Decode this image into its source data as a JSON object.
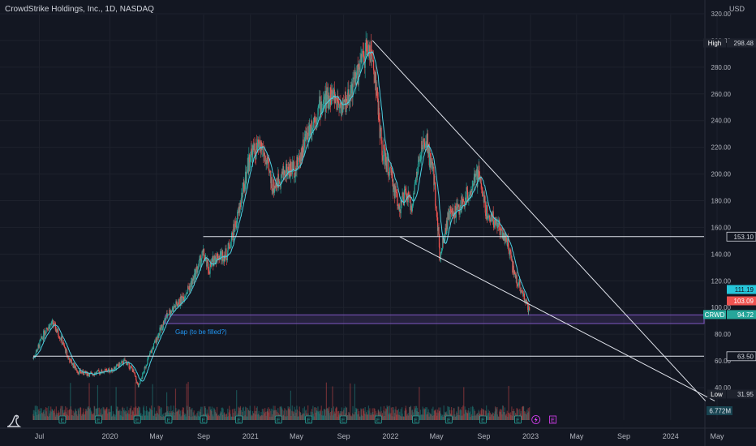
{
  "header": {
    "title": "CrowdStrike Holdings, Inc., 1D, NASDAQ",
    "currency": "USD"
  },
  "colors": {
    "background": "#131722",
    "grid": "#1e222d",
    "up": "#26a69a",
    "down": "#ef5350",
    "ma": "#4dd0e1",
    "line": "#e0e3eb",
    "gap": "#7e57c2",
    "axis_text": "#b2b5be"
  },
  "icons": {
    "logo": "dino-icon",
    "earnings": "earnings-e-icon",
    "dividend": "lightning-icon"
  },
  "chart_data": {
    "type": "candlestick",
    "title": "CrowdStrike Holdings, Inc., 1D, NASDAQ",
    "y_unit": "USD",
    "ylim": [
      30,
      320
    ],
    "grid": true,
    "x_ticks": [
      "Jul",
      "2020",
      "May",
      "Sep",
      "2021",
      "May",
      "Sep",
      "2022",
      "May",
      "Sep",
      "2023",
      "May",
      "Sep",
      "2024",
      "May"
    ],
    "y_ticks": [
      40,
      60,
      80,
      100,
      120,
      140,
      160,
      180,
      200,
      220,
      240,
      260,
      280,
      300,
      320
    ],
    "price_labels": [
      {
        "name": "High",
        "value": 298.48,
        "text": "298.48"
      },
      {
        "name": "",
        "value": 153.1,
        "text": "153.10"
      },
      {
        "name": "",
        "value": 111.19,
        "text": "111.19"
      },
      {
        "name": "",
        "value": 103.09,
        "text": "103.09"
      },
      {
        "name": "CRWD",
        "value": 94.72,
        "text": "94.72"
      },
      {
        "name": "",
        "value": 63.5,
        "text": "63.50"
      },
      {
        "name": "Low",
        "value": 31.95,
        "text": "31.95"
      }
    ],
    "volume_label": "6.772M",
    "annotations": [
      {
        "text": "Gap (to be filled?)",
        "color": "#2196f3"
      }
    ],
    "gap_zone": {
      "from": 88,
      "to": 94.5
    },
    "horizontal_lines": [
      153.1,
      63.5
    ],
    "price_path": [
      [
        "2019-06-15",
        62
      ],
      [
        "2019-07-01",
        72
      ],
      [
        "2019-07-20",
        85
      ],
      [
        "2019-08-05",
        88
      ],
      [
        "2019-08-25",
        78
      ],
      [
        "2019-09-15",
        62
      ],
      [
        "2019-10-10",
        52
      ],
      [
        "2019-11-10",
        50
      ],
      [
        "2019-12-10",
        52
      ],
      [
        "2020-01-05",
        53
      ],
      [
        "2020-02-10",
        60
      ],
      [
        "2020-03-01",
        53
      ],
      [
        "2020-03-16",
        40
      ],
      [
        "2020-04-05",
        58
      ],
      [
        "2020-05-01",
        76
      ],
      [
        "2020-06-01",
        96
      ],
      [
        "2020-07-01",
        104
      ],
      [
        "2020-08-01",
        118
      ],
      [
        "2020-08-31",
        140
      ],
      [
        "2020-09-15",
        128
      ],
      [
        "2020-10-01",
        138
      ],
      [
        "2020-11-01",
        140
      ],
      [
        "2020-12-01",
        170
      ],
      [
        "2021-01-01",
        215
      ],
      [
        "2021-02-01",
        220
      ],
      [
        "2021-03-01",
        190
      ],
      [
        "2021-04-01",
        202
      ],
      [
        "2021-05-01",
        205
      ],
      [
        "2021-06-01",
        232
      ],
      [
        "2021-07-01",
        250
      ],
      [
        "2021-08-01",
        260
      ],
      [
        "2021-09-01",
        250
      ],
      [
        "2021-10-01",
        270
      ],
      [
        "2021-10-20",
        285
      ],
      [
        "2021-11-05",
        296
      ],
      [
        "2021-11-20",
        280
      ],
      [
        "2021-12-10",
        218
      ],
      [
        "2022-01-01",
        200
      ],
      [
        "2022-01-25",
        175
      ],
      [
        "2022-02-10",
        185
      ],
      [
        "2022-02-25",
        175
      ],
      [
        "2022-03-20",
        215
      ],
      [
        "2022-04-05",
        225
      ],
      [
        "2022-04-25",
        195
      ],
      [
        "2022-05-10",
        140
      ],
      [
        "2022-06-01",
        168
      ],
      [
        "2022-07-01",
        175
      ],
      [
        "2022-08-01",
        190
      ],
      [
        "2022-08-20",
        200
      ],
      [
        "2022-09-10",
        170
      ],
      [
        "2022-10-01",
        165
      ],
      [
        "2022-11-01",
        150
      ],
      [
        "2022-11-20",
        125
      ],
      [
        "2022-12-10",
        112
      ],
      [
        "2022-12-30",
        96
      ]
    ],
    "trendlines": [
      {
        "name": "upper-trendline",
        "from": [
          "2021-11-15",
          300
        ],
        "to": [
          "2024-04-01",
          30
        ]
      },
      {
        "name": "lower-trendline",
        "from": [
          "2022-01-25",
          153
        ],
        "to": [
          "2024-04-25",
          30
        ]
      }
    ]
  }
}
